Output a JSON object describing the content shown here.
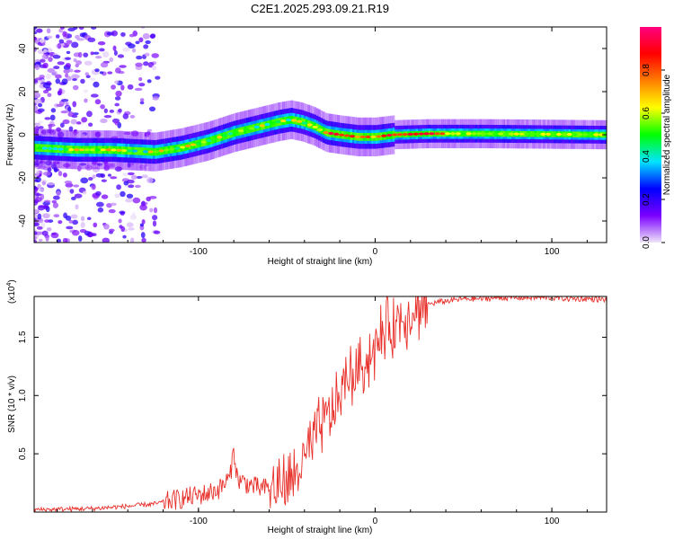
{
  "title": "C2E1.2025.293.09.21.R19",
  "chart_data": [
    {
      "type": "heatmap",
      "xlabel": "Height of straight line (km)",
      "ylabel": "Frequency (Hz)",
      "xlim": [
        -193,
        131
      ],
      "ylim": [
        -50,
        50
      ],
      "xticks": [
        -100,
        0,
        100
      ],
      "xtick_labels": [
        "-100",
        "0",
        "100"
      ],
      "yticks": [
        -40,
        -20,
        0,
        20,
        40
      ],
      "ytick_labels": [
        "-40",
        "-20",
        "0",
        "20",
        "40"
      ],
      "ridge": {
        "x": [
          -193,
          -170,
          -150,
          -125,
          -110,
          -95,
          -80,
          -65,
          -55,
          -48,
          -42,
          -35,
          -28,
          -20,
          -10,
          0,
          10,
          30,
          60,
          90,
          131
        ],
        "freq": [
          -6,
          -7,
          -7,
          -8,
          -6,
          -3,
          1,
          4,
          6,
          7,
          6,
          4,
          1,
          0,
          -1,
          -1,
          0,
          0.5,
          0.5,
          0.3,
          0
        ]
      },
      "colorbar": {
        "label": "Normalized spectral amplitude",
        "range": [
          0,
          1
        ],
        "ticks": [
          0.0,
          0.2,
          0.4,
          0.6,
          0.8
        ],
        "tick_labels": [
          "0.0",
          "0.2",
          "0.4",
          "0.6",
          "0.8"
        ],
        "colors": [
          "#f0e6f8",
          "#7a00ff",
          "#0000ff",
          "#00e5ff",
          "#00ff00",
          "#ffff00",
          "#ff7f00",
          "#ff0000",
          "#ff0080"
        ]
      }
    },
    {
      "type": "line",
      "xlabel": "Height of straight line (km)",
      "ylabel": "SNR (10 * v/v)",
      "y_multiplier": "(x10⁴)",
      "y_multiplier_base": "(x10",
      "y_multiplier_exp": "4",
      "y_multiplier_close": ")",
      "xlim": [
        -193,
        131
      ],
      "ylim": [
        0,
        1.85
      ],
      "xticks": [
        -100,
        0,
        100
      ],
      "xtick_labels": [
        "-100",
        "0",
        "100"
      ],
      "yticks": [
        0.5,
        1.0,
        1.5
      ],
      "ytick_labels": [
        "0.5",
        "1.0",
        "1.5"
      ],
      "series": [
        {
          "name": "SNR",
          "color": "#e8302a",
          "x": [
            -193,
            -160,
            -140,
            -125,
            -115,
            -105,
            -95,
            -88,
            -82,
            -80,
            -78,
            -72,
            -65,
            -55,
            -48,
            -44,
            -40,
            -36,
            -32,
            -28,
            -25,
            -22,
            -20,
            -18,
            -15,
            -12,
            -9,
            -6,
            -3,
            0,
            3,
            6,
            10,
            15,
            20,
            25,
            30,
            35,
            40,
            45,
            50,
            60,
            70,
            80,
            90,
            100,
            110,
            120,
            131
          ],
          "y": [
            0.02,
            0.03,
            0.05,
            0.07,
            0.1,
            0.13,
            0.16,
            0.2,
            0.3,
            0.55,
            0.28,
            0.24,
            0.2,
            0.22,
            0.25,
            0.35,
            0.45,
            0.55,
            0.7,
            0.8,
            0.85,
            0.9,
            1.0,
            1.1,
            1.15,
            1.18,
            1.22,
            1.28,
            1.35,
            1.4,
            1.48,
            1.55,
            1.6,
            1.66,
            1.72,
            1.76,
            1.78,
            1.8,
            1.81,
            1.82,
            1.83,
            1.83,
            1.84,
            1.84,
            1.84,
            1.84,
            1.83,
            1.83,
            1.82
          ]
        }
      ]
    }
  ]
}
